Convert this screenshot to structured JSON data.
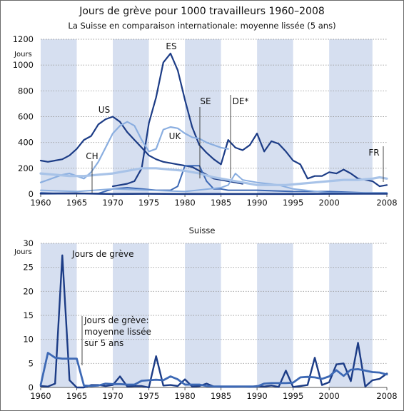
{
  "title": "Jours de grève pour 1000 travailleurs 1960–2008",
  "subtitle": "La Suisse en comparaison internationale: moyenne lissée (5 ans)",
  "colors": {
    "band": "#d6dff0",
    "dark": "#1c3c86",
    "mid": "#3d69b5",
    "light": "#8aaee0",
    "pale": "#a8c3e8",
    "grid": "#9a9a9a"
  },
  "chart_data": [
    {
      "type": "line",
      "ylabel": "Jours",
      "ylim": [
        0,
        1200
      ],
      "xlim": [
        1960,
        2008
      ],
      "y_ticks": [
        "0",
        "200",
        "400",
        "600",
        "800",
        "1000",
        "1200"
      ],
      "x_ticks": [
        "1960",
        "1965",
        "1970",
        "1975",
        "1980",
        "1985",
        "1990",
        "1995",
        "2000",
        "2008"
      ],
      "grid": true,
      "series": [
        {
          "name": "US",
          "x": [
            1960,
            1961,
            1962,
            1963,
            1964,
            1965,
            1966,
            1967,
            1968,
            1969,
            1970,
            1971,
            1972,
            1973,
            1974,
            1975,
            1976,
            1977,
            1978,
            1979,
            1980,
            1981,
            1982,
            1983,
            1984,
            1985,
            1986,
            1987,
            1988
          ],
          "values": [
            260,
            250,
            260,
            270,
            300,
            350,
            420,
            450,
            540,
            580,
            600,
            560,
            480,
            420,
            360,
            300,
            270,
            250,
            240,
            230,
            220,
            210,
            180,
            150,
            120,
            110,
            100,
            90,
            80
          ]
        },
        {
          "name": "ES",
          "x": [
            1970,
            1971,
            1972,
            1973,
            1974,
            1975,
            1976,
            1977,
            1978,
            1979,
            1980,
            1981,
            1982,
            1983,
            1984,
            1985,
            1986,
            1987,
            1988,
            1989,
            1990,
            1991,
            1992,
            1993,
            1994,
            1995,
            1996,
            1997,
            1998,
            1999,
            2000,
            2001,
            2002,
            2003,
            2004,
            2005,
            2006,
            2007,
            2008
          ],
          "values": [
            60,
            70,
            80,
            100,
            200,
            550,
            750,
            1020,
            1090,
            960,
            730,
            520,
            380,
            320,
            270,
            230,
            420,
            360,
            340,
            380,
            470,
            330,
            410,
            390,
            330,
            260,
            230,
            120,
            140,
            140,
            170,
            160,
            190,
            160,
            120,
            110,
            100,
            60,
            70
          ]
        },
        {
          "name": "UK",
          "x": [
            1960,
            1961,
            1962,
            1963,
            1964,
            1965,
            1966,
            1967,
            1968,
            1969,
            1970,
            1971,
            1972,
            1973,
            1974,
            1975,
            1976,
            1977,
            1978,
            1979,
            1980,
            1981,
            1982,
            1983,
            1984,
            1985,
            1986
          ],
          "values": [
            90,
            110,
            130,
            150,
            160,
            140,
            120,
            170,
            250,
            360,
            470,
            530,
            560,
            530,
            420,
            330,
            350,
            500,
            520,
            510,
            470,
            440,
            430,
            400,
            380,
            360,
            350
          ]
        },
        {
          "name": "SE",
          "x": [
            1960,
            1962,
            1964,
            1966,
            1968,
            1970,
            1972,
            1974,
            1976,
            1978,
            1979,
            1980,
            1981,
            1982,
            1983,
            1984,
            1985,
            1986,
            1988,
            1990,
            1995,
            2000,
            2005,
            2008
          ],
          "values": [
            10,
            5,
            5,
            5,
            5,
            40,
            50,
            40,
            30,
            30,
            60,
            220,
            220,
            220,
            100,
            40,
            40,
            30,
            30,
            30,
            20,
            20,
            10,
            10
          ]
        },
        {
          "name": "DE*",
          "x": [
            1960,
            1965,
            1970,
            1975,
            1980,
            1985,
            1986,
            1987,
            1988,
            1990,
            1993,
            1995,
            2000,
            2005,
            2008
          ],
          "values": [
            30,
            20,
            40,
            30,
            20,
            50,
            70,
            160,
            110,
            90,
            70,
            40,
            10,
            10,
            10
          ]
        },
        {
          "name": "FR",
          "x": [
            1960,
            1962,
            1964,
            1966,
            1968,
            1970,
            1972,
            1974,
            1976,
            1978,
            1980,
            1982,
            1984,
            1986,
            1988,
            1990,
            1992,
            1994,
            1996,
            1998,
            2000,
            2002,
            2004,
            2006,
            2007,
            2008
          ],
          "values": [
            160,
            150,
            140,
            140,
            150,
            160,
            180,
            200,
            200,
            190,
            180,
            160,
            130,
            110,
            90,
            70,
            70,
            70,
            80,
            90,
            100,
            110,
            110,
            120,
            130,
            120
          ]
        },
        {
          "name": "CH",
          "x": [
            1960,
            1965,
            1970,
            1975,
            1980,
            1985,
            1990,
            1995,
            2000,
            2005,
            2008
          ],
          "values": [
            4,
            5,
            1,
            2,
            1,
            1,
            1,
            1,
            2,
            3,
            3
          ]
        }
      ]
    },
    {
      "type": "line",
      "title": "Suisse",
      "ylabel": "Jours",
      "ylim": [
        0,
        30
      ],
      "xlim": [
        1960,
        2008
      ],
      "y_ticks": [
        "0",
        "5",
        "10",
        "15",
        "20",
        "25",
        "30"
      ],
      "x_ticks": [
        "1960",
        "1965",
        "1970",
        "1975",
        "1980",
        "1985",
        "1990",
        "1995",
        "2000",
        "2008"
      ],
      "grid": true,
      "series": [
        {
          "name": "Jours de grève",
          "x": [
            1960,
            1961,
            1962,
            1963,
            1964,
            1965,
            1966,
            1967,
            1968,
            1969,
            1970,
            1971,
            1972,
            1973,
            1974,
            1975,
            1976,
            1977,
            1978,
            1979,
            1980,
            1981,
            1982,
            1983,
            1984,
            1985,
            1986,
            1987,
            1988,
            1989,
            1990,
            1991,
            1992,
            1993,
            1994,
            1995,
            1996,
            1997,
            1998,
            1999,
            2000,
            2001,
            2002,
            2003,
            2004,
            2005,
            2006,
            2007,
            2008
          ],
          "values": [
            0.3,
            0.2,
            0.8,
            27.5,
            1.5,
            0,
            0,
            0.5,
            0.5,
            0.3,
            0.5,
            2.3,
            0.2,
            0.3,
            0.3,
            0,
            6.5,
            0.4,
            0.5,
            0.3,
            1.7,
            0.2,
            0.3,
            0.8,
            0.2,
            0.1,
            0.1,
            0.1,
            0.2,
            0.1,
            0.3,
            0.2,
            0.4,
            0.1,
            3.5,
            0.1,
            0.3,
            0.5,
            6.2,
            0.5,
            1.1,
            4.8,
            5,
            1.3,
            9.3,
            0.2,
            1.5,
            1.8,
            2.9
          ]
        },
        {
          "name": "Jours de grève: moyenne lissée sur 5 ans",
          "x": [
            1960,
            1961,
            1962,
            1963,
            1964,
            1965,
            1966,
            1967,
            1968,
            1969,
            1970,
            1971,
            1972,
            1973,
            1974,
            1975,
            1976,
            1977,
            1978,
            1979,
            1980,
            1981,
            1982,
            1983,
            1984,
            1985,
            1986,
            1987,
            1988,
            1989,
            1990,
            1991,
            1992,
            1993,
            1994,
            1995,
            1996,
            1997,
            1998,
            1999,
            2000,
            2001,
            2002,
            2003,
            2004,
            2005,
            2006,
            2007,
            2008
          ],
          "values": [
            0.5,
            7.2,
            6.2,
            6,
            6,
            6,
            0.4,
            0.3,
            0.4,
            0.8,
            0.7,
            0.7,
            0.6,
            0.6,
            1.4,
            1.5,
            1.6,
            1.5,
            2.3,
            1.7,
            0.6,
            0.6,
            0.6,
            0.3,
            0.2,
            0.2,
            0.2,
            0.2,
            0.2,
            0.2,
            0.2,
            0.8,
            0.9,
            0.9,
            0.9,
            1,
            2.1,
            2.2,
            2.1,
            1.8,
            2.3,
            3.6,
            2.4,
            3.7,
            3.8,
            3.5,
            3.2,
            3.1,
            2.7
          ]
        }
      ]
    }
  ],
  "annotations": {
    "es": "ES",
    "us": "US",
    "uk": "UK",
    "se": "SE",
    "de": "DE*",
    "ch": "CH",
    "fr": "FR",
    "jours_de_greve": "Jours de grève",
    "moyenne_line1": "Jours de grève:",
    "moyenne_line2": "moyenne lissée",
    "moyenne_line3": "sur 5 ans"
  }
}
